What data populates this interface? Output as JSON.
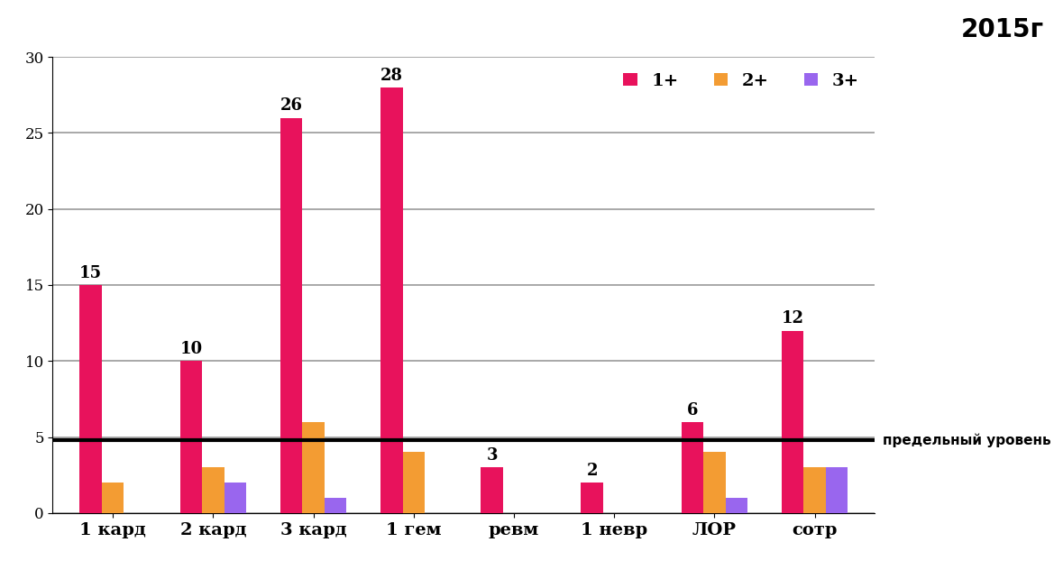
{
  "chart_data": {
    "type": "bar",
    "title": "2015г",
    "categories": [
      "1 кард",
      "2 кард",
      "3 кард",
      "1 гем",
      "ревм",
      "1 невр",
      "ЛОР",
      "сотр"
    ],
    "series": [
      {
        "name": "1+",
        "color": "#e8125c",
        "values": [
          15,
          10,
          26,
          28,
          3,
          2,
          6,
          12
        ],
        "data_labels": true
      },
      {
        "name": "2+",
        "color": "#f39c33",
        "values": [
          2,
          3,
          6,
          4,
          0,
          0,
          4,
          3
        ],
        "data_labels": false
      },
      {
        "name": "3+",
        "color": "#9966ee",
        "values": [
          0,
          2,
          1,
          0,
          0,
          0,
          1,
          3
        ],
        "data_labels": false
      }
    ],
    "reference_line": {
      "value": 4.8,
      "label": "предельный уровень"
    },
    "ylim": [
      0,
      30
    ],
    "yticks": [
      0,
      5,
      10,
      15,
      20,
      25,
      30
    ],
    "grid": true,
    "legend": "upper right"
  }
}
